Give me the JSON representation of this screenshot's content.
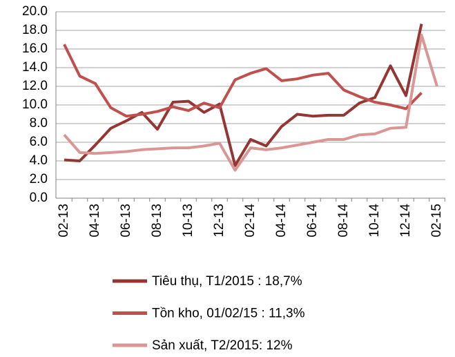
{
  "chart_data": {
    "type": "line",
    "categories": [
      "02-13",
      null,
      "04-13",
      null,
      "06-13",
      null,
      "08-13",
      null,
      "10-13",
      null,
      "12-13",
      null,
      "02-14",
      null,
      "04-14",
      null,
      "06-14",
      null,
      "08-14",
      null,
      "10-14",
      null,
      "12-14",
      null,
      "02-15"
    ],
    "series": [
      {
        "name": "Tiêu thụ, T1/2015 : 18,7%",
        "color": "#943634",
        "values": [
          4.1,
          4.0,
          5.7,
          7.5,
          8.3,
          9.2,
          7.4,
          10.3,
          10.4,
          9.2,
          10.1,
          3.5,
          6.3,
          5.6,
          7.7,
          9.0,
          8.8,
          8.9,
          8.9,
          10.2,
          10.8,
          14.2,
          11.0,
          18.7,
          null
        ]
      },
      {
        "name": "Tồn kho, 01/02/15 : 11,3%",
        "color": "#c0504d",
        "values": [
          16.5,
          13.1,
          12.3,
          9.7,
          8.8,
          9.0,
          9.3,
          9.8,
          9.4,
          10.2,
          9.7,
          12.7,
          13.4,
          13.9,
          12.6,
          12.8,
          13.2,
          13.4,
          11.6,
          10.9,
          10.3,
          10.0,
          9.6,
          11.3,
          null
        ]
      },
      {
        "name": "Sản xuất, T2/2015: 12%",
        "color": "#d99694",
        "values": [
          6.8,
          4.9,
          4.8,
          4.9,
          5.0,
          5.2,
          5.3,
          5.4,
          5.4,
          5.6,
          5.9,
          3.0,
          5.4,
          5.2,
          5.4,
          5.7,
          6.0,
          6.3,
          6.3,
          6.8,
          6.9,
          7.5,
          7.6,
          17.5,
          12.0
        ]
      }
    ],
    "ylim": [
      0,
      20
    ],
    "yticks": [
      {
        "value": 0,
        "label": "0.0"
      },
      {
        "value": 2,
        "label": "2.0"
      },
      {
        "value": 4,
        "label": "4.0"
      },
      {
        "value": 6,
        "label": "6.0"
      },
      {
        "value": 8,
        "label": "8.0"
      },
      {
        "value": 10,
        "label": "10.0"
      },
      {
        "value": 12,
        "label": "12.0"
      },
      {
        "value": 14,
        "label": "14.0"
      },
      {
        "value": 16,
        "label": "16.0"
      },
      {
        "value": 18,
        "label": "18.0"
      },
      {
        "value": 20,
        "label": "20.0"
      }
    ],
    "grid": true,
    "legend": "bottom"
  }
}
